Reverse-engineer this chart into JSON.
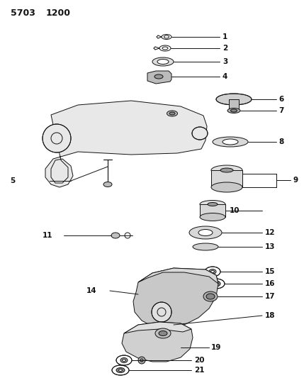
{
  "title1": "5703",
  "title2": "1200",
  "bg": "#ffffff",
  "lc": "#111111",
  "figsize": [
    4.29,
    5.33
  ],
  "dpi": 100
}
